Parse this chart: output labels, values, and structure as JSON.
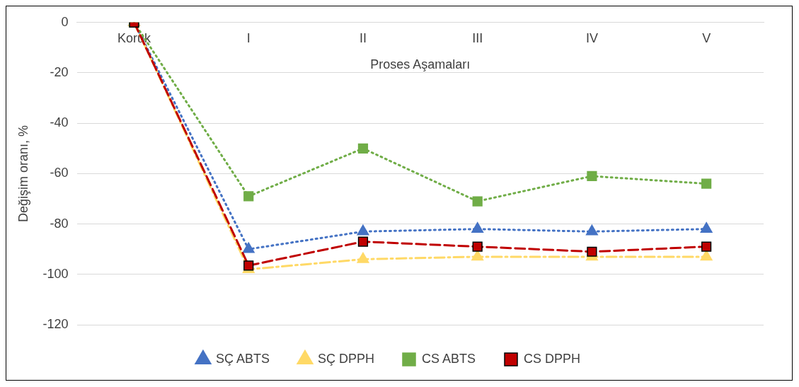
{
  "chart_data": {
    "type": "line",
    "xlabel": "Proses Aşamaları",
    "ylabel": "Değişim oranı, %",
    "categories": [
      "Koruk",
      "I",
      "II",
      "III",
      "IV",
      "V"
    ],
    "series": [
      {
        "name": "SÇ ABTS",
        "color": "#4472c4",
        "marker": "triangle",
        "line_style": "dotted",
        "values": [
          0,
          -90,
          -83,
          -82,
          -83,
          -82
        ]
      },
      {
        "name": "SÇ DPPH",
        "color": "#ffd966",
        "marker": "triangle",
        "line_style": "dashdot",
        "values": [
          0,
          -98,
          -94,
          -93,
          -93,
          -93
        ]
      },
      {
        "name": "CS ABTS",
        "color": "#70ad47",
        "marker": "square",
        "line_style": "dotted",
        "values": [
          0,
          -69,
          -50,
          -71,
          -61,
          -64
        ]
      },
      {
        "name": "CS DPPH",
        "color": "#c00000",
        "marker": "square",
        "line_style": "dashed",
        "values": [
          0,
          -96.5,
          -87,
          -89,
          -91,
          -89
        ]
      }
    ],
    "ylim": [
      -120,
      0
    ],
    "yticks": [
      -120,
      -100,
      -80,
      -60,
      -40,
      -20,
      0
    ],
    "grid": "y",
    "legend": "bottom"
  }
}
